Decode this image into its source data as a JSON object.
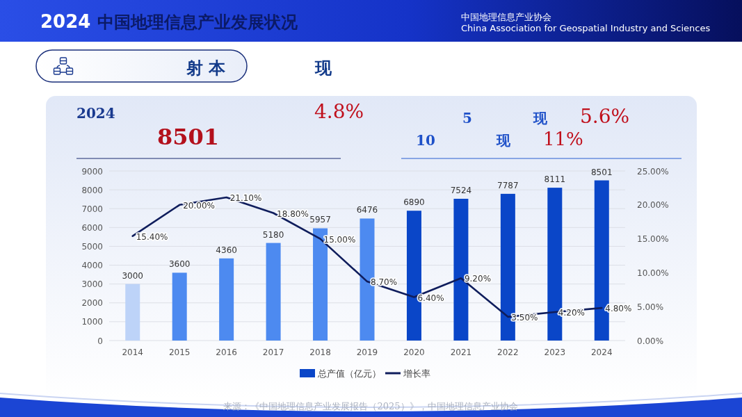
{
  "chart_data": {
    "type": "bar",
    "title": "中国地理信息产业发展状况",
    "categories": [
      "2014",
      "2015",
      "2016",
      "2017",
      "2018",
      "2019",
      "2020",
      "2021",
      "2022",
      "2023",
      "2024"
    ],
    "series": [
      {
        "name": "总产值（亿元）",
        "color": "#0a46c8",
        "colors": [
          "#bdd3f8",
          "#4d8af0",
          "#4d8af0",
          "#4d8af0",
          "#4d8af0",
          "#4d8af0",
          "#0a46c8",
          "#0a46c8",
          "#0a46c8",
          "#0a46c8",
          "#0a46c8"
        ],
        "values": [
          3000,
          3600,
          4360,
          5180,
          5957,
          6476,
          6890,
          7524,
          7787,
          8111,
          8501
        ]
      },
      {
        "name": "增长率",
        "type": "line",
        "axis": "y2",
        "color": "#0f1d5c",
        "values": [
          15.4,
          20.0,
          21.1,
          18.8,
          15.0,
          8.7,
          6.4,
          9.2,
          3.5,
          4.2,
          4.8
        ],
        "value_labels": [
          "15.40%",
          "20.00%",
          "21.10%",
          "18.80%",
          "15.00%",
          "8.70%",
          "6.40%",
          "9.20%",
          "3.50%",
          "4.20%",
          "4.80%"
        ]
      }
    ],
    "ylim": [
      0,
      9000
    ],
    "yticks": [
      0,
      1000,
      2000,
      3000,
      4000,
      5000,
      6000,
      7000,
      8000,
      9000
    ],
    "y2lim": [
      0,
      25
    ],
    "y2ticks": [
      {
        "value": 0,
        "label": "0.00%"
      },
      {
        "value": 5,
        "label": "5.00%"
      },
      {
        "value": 10,
        "label": "10.00%"
      },
      {
        "value": 15,
        "label": "15.00%"
      },
      {
        "value": 20,
        "label": "20.00%"
      },
      {
        "value": 25,
        "label": "25.00%"
      }
    ],
    "grid": "y",
    "legend": "bottom",
    "data_labels": true,
    "annotations": [
      "2024",
      "中国地理信息产业协会",
      "China Association for Geospatial Industry and Sciences",
      "射 本",
      "现",
      "2024",
      "8501",
      "4.8%",
      "5",
      "现",
      "5.6%",
      "10",
      "现",
      "11%",
      "来源：《中国地理信息产业发展报告（2025）》，中国地理信息产业协会"
    ]
  }
}
